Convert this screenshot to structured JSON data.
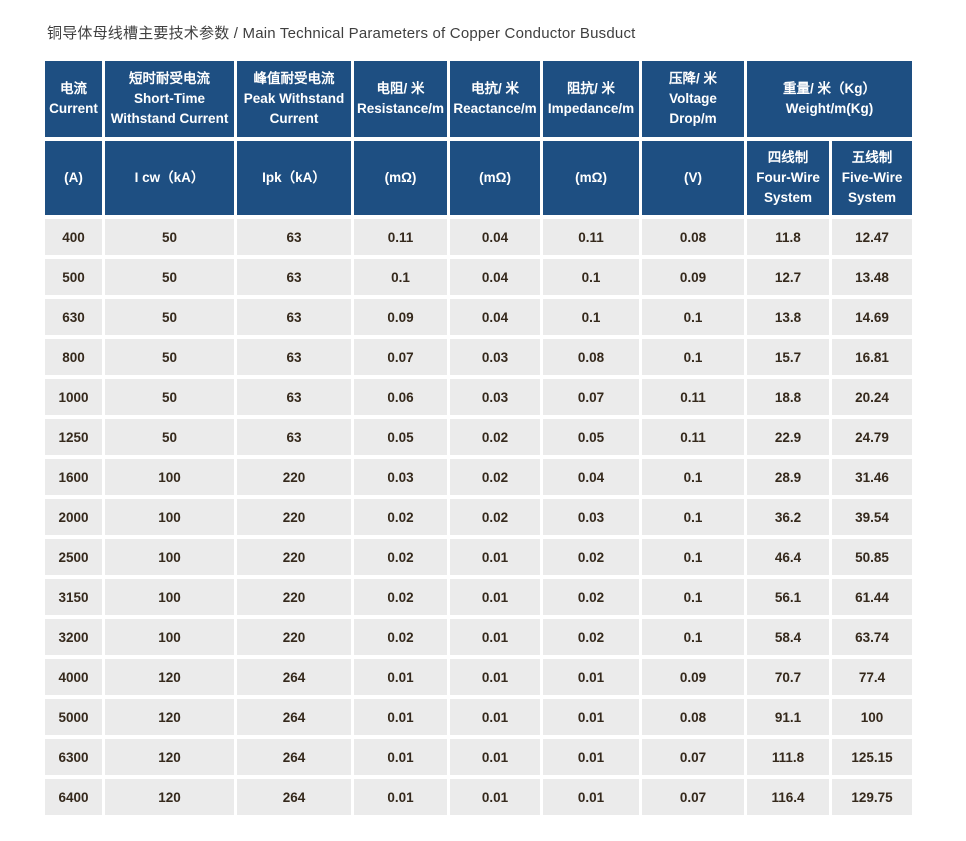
{
  "title": "铜导体母线槽主要技术参数 / Main Technical Parameters of Copper Conductor Busduct",
  "colors": {
    "header_bg": "#1e4f82",
    "header_text": "#ffffff",
    "cell_bg": "#ebebeb",
    "cell_text": "#35291c",
    "title_text": "#3f3f3f"
  },
  "table": {
    "header_row1": [
      "电流\nCurrent",
      "短时耐受电流\nShort-Time Withstand Current",
      "峰值耐受电流\nPeak Withstand Current",
      "电阻/ 米\nResistance/m",
      "电抗/ 米\nReactance/m",
      "阻抗/ 米\nImpedance/m",
      "压降/ 米\nVoltage Drop/m",
      "重量/ 米（Kg）\nWeight/m(Kg)"
    ],
    "header_row2": [
      "(A)",
      "I cw（kA）",
      "Ipk（kA）",
      "(mΩ)",
      "(mΩ)",
      "(mΩ)",
      "(V)",
      "四线制\nFour-Wire\nSystem",
      "五线制\nFive-Wire\nSystem"
    ],
    "rows": [
      [
        "400",
        "50",
        "63",
        "0.11",
        "0.04",
        "0.11",
        "0.08",
        "11.8",
        "12.47"
      ],
      [
        "500",
        "50",
        "63",
        "0.1",
        "0.04",
        "0.1",
        "0.09",
        "12.7",
        "13.48"
      ],
      [
        "630",
        "50",
        "63",
        "0.09",
        "0.04",
        "0.1",
        "0.1",
        "13.8",
        "14.69"
      ],
      [
        "800",
        "50",
        "63",
        "0.07",
        "0.03",
        "0.08",
        "0.1",
        "15.7",
        "16.81"
      ],
      [
        "1000",
        "50",
        "63",
        "0.06",
        "0.03",
        "0.07",
        "0.11",
        "18.8",
        "20.24"
      ],
      [
        "1250",
        "50",
        "63",
        "0.05",
        "0.02",
        "0.05",
        "0.11",
        "22.9",
        "24.79"
      ],
      [
        "1600",
        "100",
        "220",
        "0.03",
        "0.02",
        "0.04",
        "0.1",
        "28.9",
        "31.46"
      ],
      [
        "2000",
        "100",
        "220",
        "0.02",
        "0.02",
        "0.03",
        "0.1",
        "36.2",
        "39.54"
      ],
      [
        "2500",
        "100",
        "220",
        "0.02",
        "0.01",
        "0.02",
        "0.1",
        "46.4",
        "50.85"
      ],
      [
        "3150",
        "100",
        "220",
        "0.02",
        "0.01",
        "0.02",
        "0.1",
        "56.1",
        "61.44"
      ],
      [
        "3200",
        "100",
        "220",
        "0.02",
        "0.01",
        "0.02",
        "0.1",
        "58.4",
        "63.74"
      ],
      [
        "4000",
        "120",
        "264",
        "0.01",
        "0.01",
        "0.01",
        "0.09",
        "70.7",
        "77.4"
      ],
      [
        "5000",
        "120",
        "264",
        "0.01",
        "0.01",
        "0.01",
        "0.08",
        "91.1",
        "100"
      ],
      [
        "6300",
        "120",
        "264",
        "0.01",
        "0.01",
        "0.01",
        "0.07",
        "111.8",
        "125.15"
      ],
      [
        "6400",
        "120",
        "264",
        "0.01",
        "0.01",
        "0.01",
        "0.07",
        "116.4",
        "129.75"
      ]
    ]
  }
}
